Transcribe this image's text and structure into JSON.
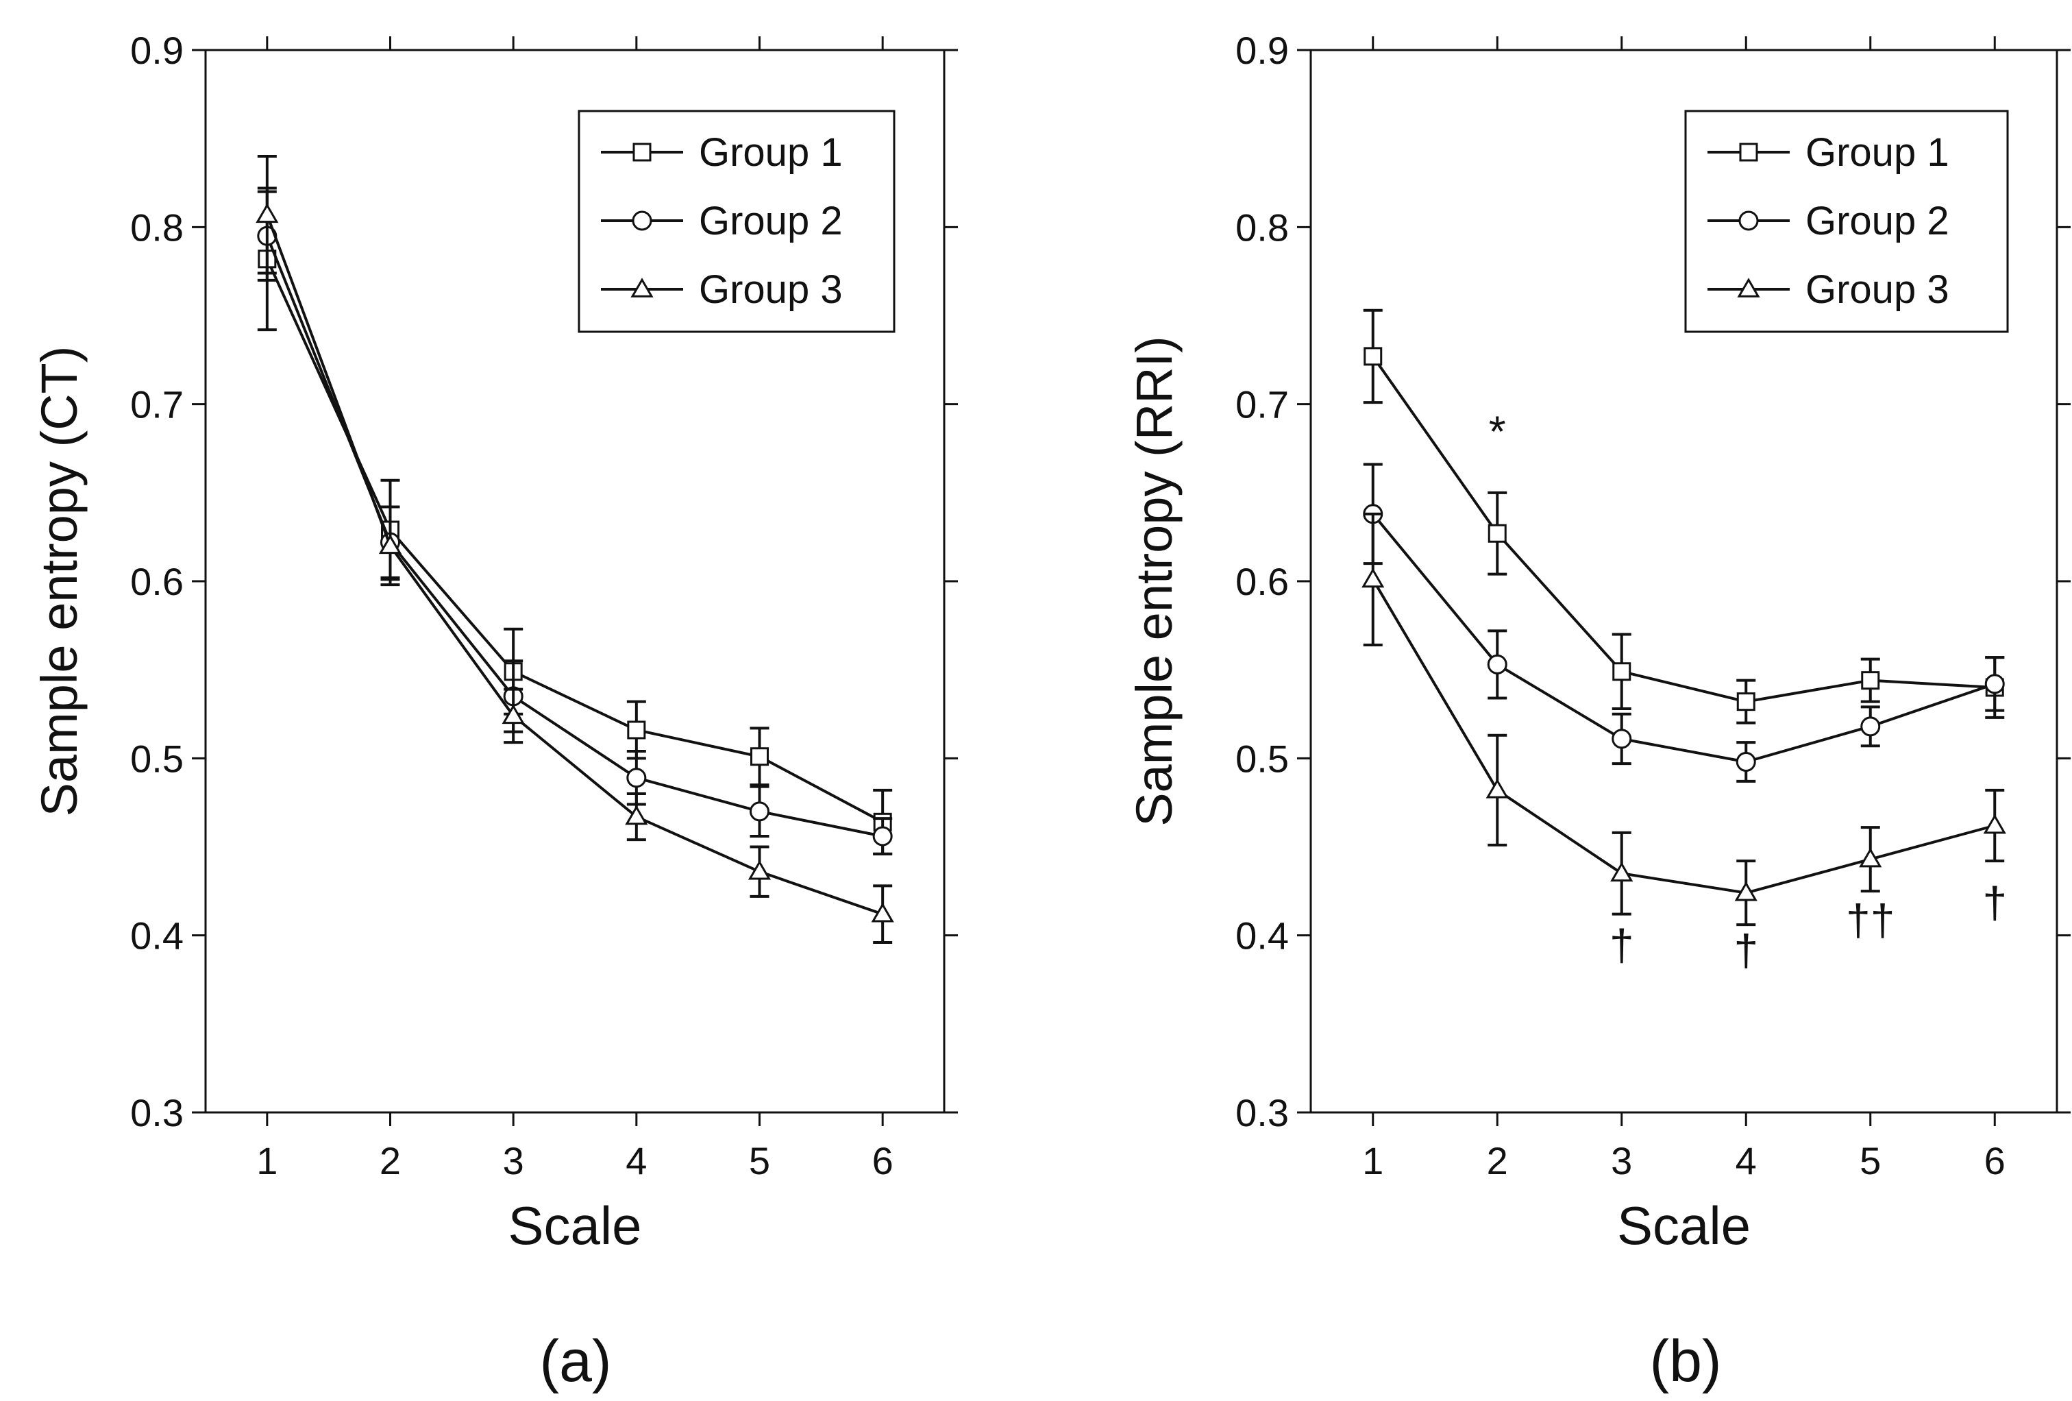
{
  "chart_data": [
    {
      "type": "line",
      "panel_label": "(a)",
      "xlabel": "Scale",
      "ylabel": "Sample entropy (CT)",
      "x": [
        1,
        2,
        3,
        4,
        5,
        6
      ],
      "xlim": [
        0.5,
        6.5
      ],
      "ylim": [
        0.3,
        0.9
      ],
      "xticks": [
        1,
        2,
        3,
        4,
        5,
        6
      ],
      "yticks": [
        0.3,
        0.4,
        0.5,
        0.6,
        0.7,
        0.8,
        0.9
      ],
      "ytick_labels": [
        "0.3",
        "0.4",
        "0.5",
        "0.6",
        "0.7",
        "0.8",
        "0.9"
      ],
      "legend_position": "top-right",
      "series": [
        {
          "name": "Group 1",
          "marker": "square",
          "values": [
            0.782,
            0.629,
            0.549,
            0.516,
            0.501,
            0.464
          ],
          "errors": [
            0.04,
            0.028,
            0.024,
            0.016,
            0.016,
            0.018
          ]
        },
        {
          "name": "Group 2",
          "marker": "circle",
          "values": [
            0.795,
            0.622,
            0.535,
            0.489,
            0.47,
            0.456
          ],
          "errors": [
            0.025,
            0.02,
            0.02,
            0.015,
            0.014,
            0.01
          ]
        },
        {
          "name": "Group 3",
          "marker": "triangle",
          "values": [
            0.807,
            0.62,
            0.524,
            0.467,
            0.436,
            0.412
          ],
          "errors": [
            0.033,
            0.022,
            0.015,
            0.013,
            0.014,
            0.016
          ]
        }
      ],
      "annotations": []
    },
    {
      "type": "line",
      "panel_label": "(b)",
      "xlabel": "Scale",
      "ylabel": "Sample entropy (RRI)",
      "x": [
        1,
        2,
        3,
        4,
        5,
        6
      ],
      "xlim": [
        0.5,
        6.5
      ],
      "ylim": [
        0.3,
        0.9
      ],
      "xticks": [
        1,
        2,
        3,
        4,
        5,
        6
      ],
      "yticks": [
        0.3,
        0.4,
        0.5,
        0.6,
        0.7,
        0.8,
        0.9
      ],
      "ytick_labels": [
        "0.3",
        "0.4",
        "0.5",
        "0.6",
        "0.7",
        "0.8",
        "0.9"
      ],
      "legend_position": "top-right",
      "series": [
        {
          "name": "Group 1",
          "marker": "square",
          "values": [
            0.727,
            0.627,
            0.549,
            0.532,
            0.544,
            0.54
          ],
          "errors": [
            0.026,
            0.023,
            0.021,
            0.012,
            0.012,
            0.017
          ]
        },
        {
          "name": "Group 2",
          "marker": "circle",
          "values": [
            0.638,
            0.553,
            0.511,
            0.498,
            0.518,
            0.542
          ],
          "errors": [
            0.028,
            0.019,
            0.014,
            0.011,
            0.011,
            0.015
          ]
        },
        {
          "name": "Group 3",
          "marker": "triangle",
          "values": [
            0.601,
            0.482,
            0.435,
            0.424,
            0.443,
            0.462
          ],
          "errors": [
            0.037,
            0.031,
            0.023,
            0.018,
            0.018,
            0.02
          ]
        }
      ],
      "annotations": [
        {
          "text": "*",
          "x": 2,
          "y": 0.676
        },
        {
          "text": "†",
          "x": 3,
          "y": 0.386
        },
        {
          "text": "†",
          "x": 4,
          "y": 0.383
        },
        {
          "text": "††",
          "x": 5,
          "y": 0.4
        },
        {
          "text": "†",
          "x": 6,
          "y": 0.41
        }
      ]
    }
  ]
}
